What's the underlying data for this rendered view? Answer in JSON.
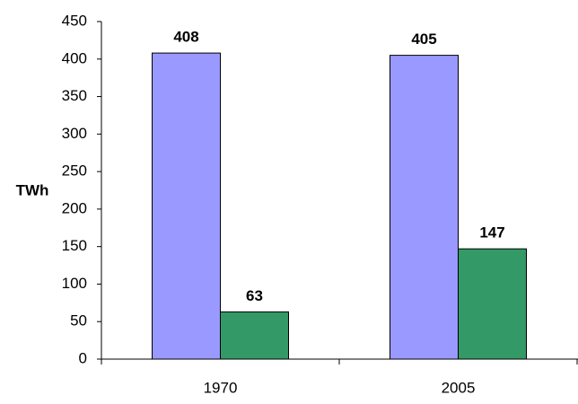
{
  "chart_data": {
    "type": "bar",
    "y_label": "TWh",
    "categories": [
      "1970",
      "2005"
    ],
    "series": [
      {
        "color": "#9999ff",
        "values": [
          408,
          405
        ]
      },
      {
        "color": "#339966",
        "values": [
          63,
          147
        ]
      }
    ],
    "ylim": [
      0,
      450
    ],
    "yticks": [
      0,
      50,
      100,
      150,
      200,
      250,
      300,
      350,
      400,
      450
    ],
    "grid": false,
    "data_labels": true
  }
}
